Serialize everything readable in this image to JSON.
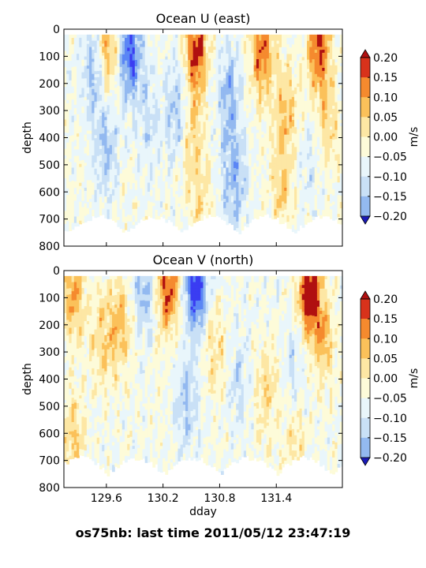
{
  "figure": {
    "footer": "os75nb: last time 2011/05/12 23:47:19"
  },
  "colormap": {
    "levels": [
      -0.2,
      -0.15,
      -0.1,
      -0.05,
      0.0,
      0.05,
      0.1,
      0.15,
      0.2
    ],
    "colors": [
      "#3a3df2",
      "#5b86f5",
      "#93b9f0",
      "#c9e0f6",
      "#e9f6fb",
      "#fdfbd9",
      "#fde7a4",
      "#fbc15a",
      "#f58a2e",
      "#d8321b",
      "#b01010"
    ],
    "under_color": "#1a1ab8",
    "over_color": "#b01010",
    "unit": "m/s",
    "tick_labels": [
      "0.20",
      "0.15",
      "0.10",
      "0.05",
      "0.00",
      "−0.05",
      "−0.10",
      "−0.15",
      "−0.20"
    ]
  },
  "chart_data": [
    {
      "type": "heatmap",
      "title": "Ocean U (east)",
      "xlabel": "",
      "ylabel": "depth",
      "xlim": [
        129.15,
        132.1
      ],
      "ylim": [
        800,
        0
      ],
      "x_ticks": [
        129.6,
        130.2,
        130.8,
        131.4
      ],
      "x_tick_labels": [],
      "y_ticks": [
        0,
        100,
        200,
        300,
        400,
        500,
        600,
        700,
        800
      ],
      "y_tick_labels": [
        "0",
        "100",
        "200",
        "300",
        "400",
        "500",
        "600",
        "700",
        "800"
      ],
      "x_range": [
        129.15,
        132.1
      ],
      "depth_range": [
        20,
        760
      ],
      "features": [
        {
          "x": 129.47,
          "depth": 150,
          "value": -0.12
        },
        {
          "x": 129.6,
          "depth": 450,
          "value": -0.1
        },
        {
          "x": 129.85,
          "depth": 80,
          "value": -0.22
        },
        {
          "x": 129.62,
          "depth": 60,
          "value": 0.15
        },
        {
          "x": 130.05,
          "depth": 350,
          "value": -0.07
        },
        {
          "x": 130.35,
          "depth": 300,
          "value": -0.11
        },
        {
          "x": 130.55,
          "depth": 80,
          "value": 0.22
        },
        {
          "x": 130.5,
          "depth": 400,
          "value": 0.1
        },
        {
          "x": 130.6,
          "depth": 650,
          "value": 0.07
        },
        {
          "x": 130.9,
          "depth": 250,
          "value": -0.12
        },
        {
          "x": 130.95,
          "depth": 560,
          "value": -0.13
        },
        {
          "x": 131.25,
          "depth": 80,
          "value": 0.2
        },
        {
          "x": 131.5,
          "depth": 300,
          "value": 0.12
        },
        {
          "x": 131.45,
          "depth": 600,
          "value": 0.1
        },
        {
          "x": 131.85,
          "depth": 70,
          "value": 0.21
        },
        {
          "x": 131.95,
          "depth": 350,
          "value": 0.09
        },
        {
          "x": 131.75,
          "depth": 500,
          "value": -0.05
        }
      ]
    },
    {
      "type": "heatmap",
      "title": "Ocean V (north)",
      "xlabel": "dday",
      "ylabel": "depth",
      "xlim": [
        129.15,
        132.1
      ],
      "ylim": [
        800,
        0
      ],
      "x_ticks": [
        129.6,
        130.2,
        130.8,
        131.4
      ],
      "x_tick_labels": [
        "129.6",
        "130.2",
        "130.8",
        "131.4"
      ],
      "y_ticks": [
        0,
        100,
        200,
        300,
        400,
        500,
        600,
        700,
        800
      ],
      "y_tick_labels": [
        "0",
        "100",
        "200",
        "300",
        "400",
        "500",
        "600",
        "700",
        "800"
      ],
      "x_range": [
        129.15,
        132.1
      ],
      "depth_range": [
        20,
        760
      ],
      "features": [
        {
          "x": 129.25,
          "depth": 80,
          "value": 0.15
        },
        {
          "x": 129.25,
          "depth": 620,
          "value": 0.1
        },
        {
          "x": 129.55,
          "depth": 250,
          "value": 0.1
        },
        {
          "x": 129.75,
          "depth": 200,
          "value": 0.12
        },
        {
          "x": 130.0,
          "depth": 70,
          "value": -0.12
        },
        {
          "x": 130.25,
          "depth": 60,
          "value": 0.22
        },
        {
          "x": 130.55,
          "depth": 50,
          "value": -0.25
        },
        {
          "x": 130.45,
          "depth": 480,
          "value": -0.1
        },
        {
          "x": 130.75,
          "depth": 300,
          "value": 0.08
        },
        {
          "x": 131.0,
          "depth": 400,
          "value": -0.07
        },
        {
          "x": 131.3,
          "depth": 450,
          "value": 0.09
        },
        {
          "x": 131.6,
          "depth": 350,
          "value": -0.06
        },
        {
          "x": 131.75,
          "depth": 80,
          "value": 0.25
        },
        {
          "x": 131.9,
          "depth": 250,
          "value": 0.12
        },
        {
          "x": 131.6,
          "depth": 650,
          "value": 0.07
        }
      ]
    }
  ]
}
